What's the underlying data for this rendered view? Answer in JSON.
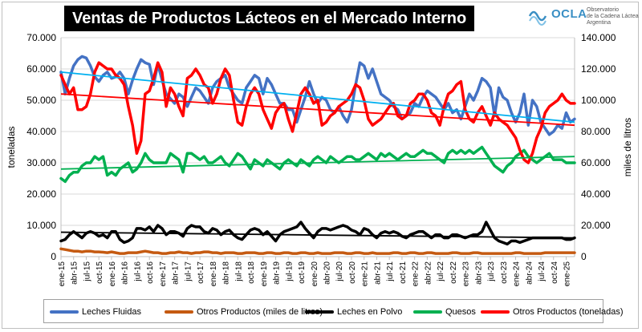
{
  "header": {
    "title": "Ventas de Productos Lácteos en el Mercado Interno"
  },
  "logo": {
    "name": "OCLA",
    "subtitle_lines": [
      "Observatorio",
      "de la Cadena Láctea",
      "Argentina"
    ]
  },
  "chart_data": {
    "type": "line",
    "title": "Ventas de Productos Lácteos en el Mercado Interno",
    "ylabel_left": "toneladas",
    "ylabel_right": "miles de litros",
    "ylim_left": [
      0,
      70000
    ],
    "ylim_right": [
      0,
      140000
    ],
    "yticks_left": [
      "0",
      "10.000",
      "20.000",
      "30.000",
      "40.000",
      "50.000",
      "60.000",
      "70.000"
    ],
    "yticks_right": [
      "0",
      "20.000",
      "40.000",
      "60.000",
      "80.000",
      "100.000",
      "120.000",
      "140.000"
    ],
    "x_ticks": [
      "ene-15",
      "abr-15",
      "jul-15",
      "oct-15",
      "ene-16",
      "abr-16",
      "jul-16",
      "oct-16",
      "ene-17",
      "abr-17",
      "jul-17",
      "oct-17",
      "ene-18",
      "abr-18",
      "jul-18",
      "oct-18",
      "ene-19",
      "abr-19",
      "jul-19",
      "oct-19",
      "ene-20",
      "abr-20",
      "jul-20",
      "oct-20",
      "ene-21",
      "abr-21",
      "jul-21",
      "oct-21",
      "ene-22",
      "abr-22",
      "jul-22",
      "oct-22",
      "ene-23",
      "abr-23",
      "jul-23",
      "oct-23",
      "ene-24",
      "abr-24",
      "jul-24",
      "oct-24",
      "ene-25"
    ],
    "n_months": 123,
    "series": [
      {
        "name": "Leches Fluidas",
        "axis": "right",
        "color": "#4472c4",
        "width": 3.5,
        "values": [
          118000,
          104000,
          114000,
          122000,
          126000,
          128000,
          127000,
          122000,
          115000,
          112000,
          116000,
          118000,
          114000,
          115000,
          118000,
          114000,
          104000,
          113000,
          120000,
          126000,
          124000,
          123000,
          110000,
          123000,
          113000,
          104000,
          101000,
          98000,
          104000,
          102000,
          96000,
          102000,
          108000,
          106000,
          102000,
          98000,
          108000,
          112000,
          114000,
          116000,
          108000,
          104000,
          100000,
          98000,
          108000,
          112000,
          116000,
          114000,
          104000,
          114000,
          110000,
          104000,
          98000,
          98000,
          94000,
          94000,
          86000,
          94000,
          102000,
          112000,
          104000,
          98000,
          102000,
          100000,
          94000,
          92000,
          96000,
          90000,
          86000,
          94000,
          110000,
          124000,
          122000,
          114000,
          120000,
          112000,
          104000,
          102000,
          100000,
          96000,
          94000,
          88000,
          90000,
          92000,
          98000,
          96000,
          102000,
          106000,
          104000,
          102000,
          98000,
          94000,
          98000,
          92000,
          94000,
          88000,
          96000,
          104000,
          100000,
          106000,
          114000,
          112000,
          108000,
          90000,
          108000,
          102000,
          100000,
          92000,
          86000,
          92000,
          104000,
          84000,
          100000,
          96000,
          86000,
          82000,
          78000,
          80000,
          84000,
          82000,
          92000,
          86000,
          88000
        ]
      },
      {
        "name": "Otros Productos (toneladas)",
        "axis": "left",
        "color": "#ff0000",
        "width": 3.5,
        "values": [
          58000,
          55000,
          52000,
          54000,
          47000,
          47000,
          48000,
          52000,
          59000,
          62000,
          61000,
          60000,
          60000,
          58000,
          57000,
          55000,
          48000,
          42000,
          33000,
          37000,
          52000,
          53000,
          57000,
          62000,
          59000,
          48000,
          54000,
          52000,
          48000,
          45000,
          57000,
          58000,
          60000,
          58000,
          55000,
          54000,
          49000,
          52000,
          57000,
          60000,
          58000,
          50000,
          43000,
          42000,
          48000,
          52000,
          54000,
          52000,
          47000,
          44000,
          41000,
          46000,
          48000,
          49000,
          44000,
          40000,
          46000,
          52000,
          54000,
          52000,
          49000,
          50000,
          42000,
          43000,
          45000,
          46000,
          48000,
          49000,
          50000,
          52000,
          55000,
          54000,
          50000,
          44000,
          42000,
          43000,
          44000,
          46000,
          48000,
          49000,
          45000,
          44000,
          45000,
          49000,
          50000,
          52000,
          52000,
          50000,
          46000,
          45000,
          42000,
          48000,
          52000,
          53000,
          55000,
          56000,
          47000,
          44000,
          43000,
          46000,
          48000,
          45000,
          42000,
          46000,
          44000,
          43000,
          42000,
          40000,
          38000,
          34000,
          31000,
          30000,
          33000,
          38000,
          41000,
          46000,
          48000,
          49000,
          50000,
          52000,
          50000,
          49000,
          49000
        ]
      },
      {
        "name": "Quesos",
        "axis": "left",
        "color": "#00b050",
        "width": 3.5,
        "values": [
          25000,
          24000,
          26000,
          27000,
          27000,
          29000,
          30000,
          30000,
          32000,
          31000,
          32000,
          26000,
          27000,
          26000,
          28000,
          29000,
          30000,
          27000,
          28000,
          30000,
          33000,
          31000,
          30000,
          30000,
          30000,
          30000,
          33000,
          32000,
          31000,
          27000,
          33000,
          33000,
          32000,
          31000,
          32000,
          30000,
          30000,
          31000,
          32000,
          30000,
          29000,
          31000,
          33000,
          32000,
          30000,
          28000,
          31000,
          30000,
          29000,
          31000,
          30000,
          29000,
          28000,
          30000,
          31000,
          30000,
          29000,
          31000,
          30000,
          29000,
          31000,
          32000,
          31000,
          30000,
          32000,
          31000,
          30000,
          31000,
          32000,
          32000,
          31000,
          31000,
          32000,
          33000,
          32000,
          31000,
          33000,
          32000,
          33000,
          32000,
          31000,
          32000,
          33000,
          32000,
          32000,
          33000,
          34000,
          33000,
          33000,
          32000,
          31000,
          30000,
          33000,
          34000,
          33000,
          34000,
          33000,
          34000,
          33000,
          34000,
          35000,
          33000,
          31000,
          29000,
          28000,
          27000,
          29000,
          30000,
          32000,
          33000,
          34000,
          32000,
          31000,
          30000,
          31000,
          32000,
          33000,
          31000,
          31000,
          31000,
          30000,
          30000,
          30000
        ]
      },
      {
        "name": "Leches en Polvo",
        "axis": "left",
        "color": "#000000",
        "width": 3.5,
        "values": [
          5000,
          5500,
          7000,
          8000,
          7000,
          6000,
          7500,
          8000,
          7500,
          6500,
          7000,
          6000,
          8000,
          8000,
          5500,
          4500,
          5000,
          6000,
          9000,
          9000,
          8500,
          9500,
          8000,
          10000,
          9000,
          7000,
          8000,
          8000,
          7500,
          6500,
          9000,
          10000,
          9500,
          9500,
          8000,
          7500,
          9000,
          8500,
          7000,
          8000,
          8500,
          7000,
          6000,
          5500,
          7000,
          8500,
          9000,
          8500,
          7000,
          8000,
          6500,
          5000,
          7000,
          8000,
          8500,
          9000,
          9500,
          11000,
          9000,
          7500,
          6000,
          8000,
          9000,
          9000,
          8500,
          9000,
          9500,
          10000,
          9500,
          8500,
          8000,
          7000,
          9000,
          8500,
          7000,
          6000,
          7500,
          8000,
          7500,
          8000,
          7500,
          6500,
          6000,
          7000,
          7500,
          8000,
          8000,
          7000,
          6000,
          7000,
          7000,
          6000,
          6000,
          7000,
          7000,
          6500,
          6000,
          6500,
          7000,
          7000,
          8000,
          11000,
          8500,
          6000,
          5000,
          4500,
          4000,
          5000,
          5000,
          4500,
          5000,
          5500,
          6000,
          6000,
          6000,
          6000,
          6000,
          6000,
          6000,
          6000,
          5500,
          5500,
          6000
        ]
      },
      {
        "name": "Otros Productos (miles de litros)",
        "axis": "right",
        "color": "#c55a11",
        "width": 3.5,
        "values": [
          5000,
          4500,
          4000,
          3500,
          3500,
          3000,
          3500,
          3500,
          3000,
          3000,
          2800,
          2500,
          3000,
          2500,
          2000,
          2000,
          2500,
          2500,
          2500,
          3000,
          3500,
          3000,
          2500,
          2500,
          2000,
          2000,
          2500,
          2500,
          3000,
          2500,
          2500,
          2000,
          2500,
          2500,
          3000,
          3000,
          2500,
          2500,
          2000,
          2500,
          2500,
          2500,
          2000,
          2000,
          2500,
          2500,
          2500,
          2000,
          2000,
          2500,
          2500,
          2000,
          2000,
          2500,
          2500,
          2000,
          2000,
          2500,
          2500,
          2000,
          2000,
          2500,
          2000,
          2000,
          2000,
          2500,
          2500,
          2500,
          2000,
          2000,
          2500,
          2500,
          2000,
          2000,
          2500,
          2000,
          2000,
          2000,
          2000,
          2500,
          2500,
          2000,
          2000,
          2500,
          2500,
          2000,
          2000,
          2500,
          2500,
          2000,
          2000,
          2000,
          2000,
          2500,
          2500,
          2000,
          2000,
          2000,
          2500,
          2500,
          2000,
          2000,
          2000,
          2000,
          2000,
          2000,
          2000,
          2000,
          2500,
          2500,
          2000,
          2000,
          2000,
          2000,
          2000,
          2500,
          2500,
          2500,
          2500,
          2500,
          2500,
          2500,
          2500
        ]
      }
    ],
    "trendlines": [
      {
        "name": "Tendencia Leches Fluidas",
        "axis": "right",
        "color": "#00b0f0",
        "start": 118000,
        "end": 86000
      },
      {
        "name": "Tendencia Otros Productos (toneladas)",
        "axis": "left",
        "color": "#ff0000",
        "start": 52000,
        "end": 42000
      },
      {
        "name": "Tendencia Quesos",
        "axis": "left",
        "color": "#00b050",
        "start": 28000,
        "end": 32000
      },
      {
        "name": "Tendencia Leches en Polvo",
        "axis": "left",
        "color": "#000000",
        "start": 7800,
        "end": 6000
      }
    ],
    "legend_position": "bottom"
  }
}
